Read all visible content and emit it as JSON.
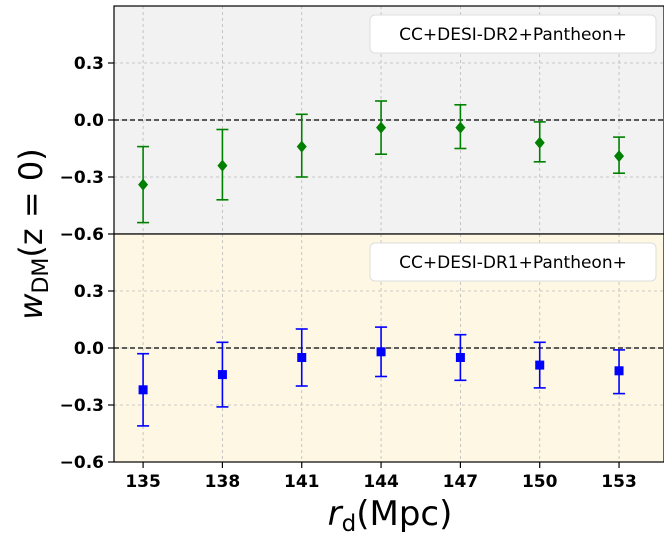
{
  "chart_data": {
    "type": "scatter",
    "shared_x": {
      "label_main": "r",
      "label_sub": "d",
      "label_unit": "(Mpc)",
      "ticks": [
        135,
        138,
        141,
        144,
        147,
        150,
        153
      ],
      "xlim": [
        133.9,
        154.7
      ]
    },
    "shared_y": {
      "label_main": "w",
      "label_sub": "DM",
      "label_arg": "(z = 0)"
    },
    "panels": [
      {
        "annotation": "CC+DESI-DR2+Pantheon+",
        "background": "#f2f2f2",
        "marker": "diamond",
        "color": "#008000",
        "ylim": [
          -0.6,
          0.6
        ],
        "yticks": [
          0.3,
          0.0,
          -0.3,
          -0.6
        ],
        "ytick_labels": [
          "0.3",
          "0.0",
          "−0.3",
          "−0.6"
        ],
        "reference_line": 0.0,
        "series": {
          "x": [
            135,
            138,
            141,
            144,
            147,
            150,
            153
          ],
          "y": [
            -0.34,
            -0.24,
            -0.14,
            -0.04,
            -0.04,
            -0.12,
            -0.19
          ],
          "err_lo": [
            0.2,
            0.18,
            0.16,
            0.14,
            0.11,
            0.1,
            0.09
          ],
          "err_hi": [
            0.2,
            0.19,
            0.17,
            0.14,
            0.12,
            0.11,
            0.1
          ]
        }
      },
      {
        "annotation": "CC+DESI-DR1+Pantheon+",
        "background": "#fdf7e4",
        "marker": "square",
        "color": "#0000ff",
        "ylim": [
          -0.6,
          0.6
        ],
        "yticks": [
          0.3,
          0.0,
          -0.3,
          -0.6
        ],
        "ytick_labels": [
          "0.3",
          "0.0",
          "−0.3",
          "−0.6"
        ],
        "reference_line": 0.0,
        "series": {
          "x": [
            135,
            138,
            141,
            144,
            147,
            150,
            153
          ],
          "y": [
            -0.22,
            -0.14,
            -0.05,
            -0.02,
            -0.05,
            -0.09,
            -0.12
          ],
          "err_lo": [
            0.19,
            0.17,
            0.15,
            0.13,
            0.12,
            0.12,
            0.12
          ],
          "err_hi": [
            0.19,
            0.17,
            0.15,
            0.13,
            0.12,
            0.12,
            0.11
          ]
        }
      }
    ],
    "grid": true
  }
}
